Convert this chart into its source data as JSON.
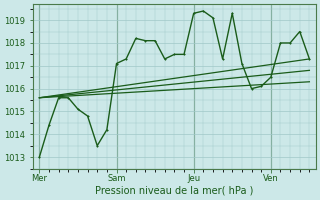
{
  "bg_color": "#cce8e8",
  "grid_color": "#a0c8c8",
  "line_color": "#1a5c1a",
  "title": "Pression niveau de la mer( hPa )",
  "ylabel_ticks": [
    1013,
    1014,
    1015,
    1016,
    1017,
    1018,
    1019
  ],
  "ylim": [
    1012.5,
    1019.7
  ],
  "day_labels": [
    "Mer",
    "Sam",
    "Jeu",
    "Ven"
  ],
  "day_positions": [
    0,
    48,
    96,
    144
  ],
  "xlim": [
    -4,
    172
  ],
  "series1": {
    "x": [
      0,
      6,
      12,
      18,
      24,
      30,
      36,
      42,
      48,
      54,
      60,
      66,
      72,
      78,
      84,
      90,
      96,
      102,
      108,
      114,
      120,
      126,
      132,
      138,
      144,
      150,
      156,
      162,
      168
    ],
    "y": [
      1013.0,
      1014.4,
      1015.6,
      1015.6,
      1015.1,
      1014.8,
      1013.5,
      1014.2,
      1017.1,
      1017.3,
      1018.2,
      1018.1,
      1018.1,
      1017.3,
      1017.5,
      1017.5,
      1019.3,
      1019.4,
      1019.1,
      1017.3,
      1019.3,
      1017.1,
      1016.0,
      1016.1,
      1016.5,
      1018.0,
      1018.0,
      1018.5,
      1017.3
    ],
    "markersize": 2.0,
    "linewidth": 1.0
  },
  "series2": {
    "x": [
      0,
      168
    ],
    "y": [
      1015.6,
      1017.3
    ],
    "linewidth": 0.9
  },
  "series3": {
    "x": [
      0,
      168
    ],
    "y": [
      1015.6,
      1016.8
    ],
    "linewidth": 0.9
  },
  "series4": {
    "x": [
      0,
      168
    ],
    "y": [
      1015.6,
      1016.3
    ],
    "linewidth": 0.9
  },
  "title_fontsize": 7.0,
  "tick_fontsize": 6.0
}
